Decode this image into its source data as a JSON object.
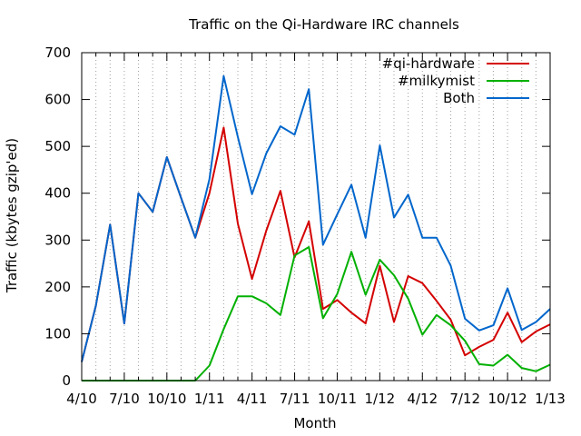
{
  "chart_data": {
    "type": "line",
    "title": "Traffic on the Qi-Hardware IRC channels",
    "xlabel": "Month",
    "ylabel": "Traffic (kbytes gzip'ed)",
    "ylim": [
      0,
      700
    ],
    "yticks": [
      0,
      100,
      200,
      300,
      400,
      500,
      600,
      700
    ],
    "xlim": [
      0,
      33
    ],
    "xticks": [
      {
        "x": 0,
        "label": "4/10"
      },
      {
        "x": 3,
        "label": "7/10"
      },
      {
        "x": 6,
        "label": "10/10"
      },
      {
        "x": 9,
        "label": "1/11"
      },
      {
        "x": 12,
        "label": "4/11"
      },
      {
        "x": 15,
        "label": "7/11"
      },
      {
        "x": 18,
        "label": "10/11"
      },
      {
        "x": 21,
        "label": "1/12"
      },
      {
        "x": 24,
        "label": "4/12"
      },
      {
        "x": 27,
        "label": "7/12"
      },
      {
        "x": 30,
        "label": "10/12"
      },
      {
        "x": 33,
        "label": "1/13"
      }
    ],
    "grid": "vertical-dotted",
    "legend_position": "top-right",
    "series": [
      {
        "name": "#qi-hardware",
        "color": "#d40000",
        "values": [
          40,
          160,
          333,
          122,
          400,
          360,
          477,
          390,
          305,
          400,
          540,
          335,
          217,
          320,
          405,
          263,
          340,
          153,
          172,
          145,
          122,
          245,
          125,
          223,
          208,
          170,
          130,
          54,
          72,
          87,
          145,
          82,
          105,
          120
        ]
      },
      {
        "name": "#milkymist",
        "color": "#00b000",
        "values": [
          0,
          0,
          0,
          0,
          0,
          0,
          0,
          0,
          0,
          32,
          110,
          180,
          180,
          165,
          140,
          267,
          285,
          133,
          185,
          275,
          183,
          258,
          225,
          175,
          98,
          140,
          118,
          85,
          35,
          32,
          55,
          27,
          20,
          34
        ]
      },
      {
        "name": "Both",
        "color": "#0066cc",
        "values": [
          40,
          160,
          333,
          122,
          400,
          360,
          477,
          390,
          305,
          430,
          650,
          520,
          398,
          485,
          543,
          525,
          622,
          290,
          355,
          418,
          305,
          502,
          348,
          397,
          305,
          305,
          245,
          132,
          107,
          118,
          197,
          108,
          125,
          153
        ]
      }
    ]
  }
}
